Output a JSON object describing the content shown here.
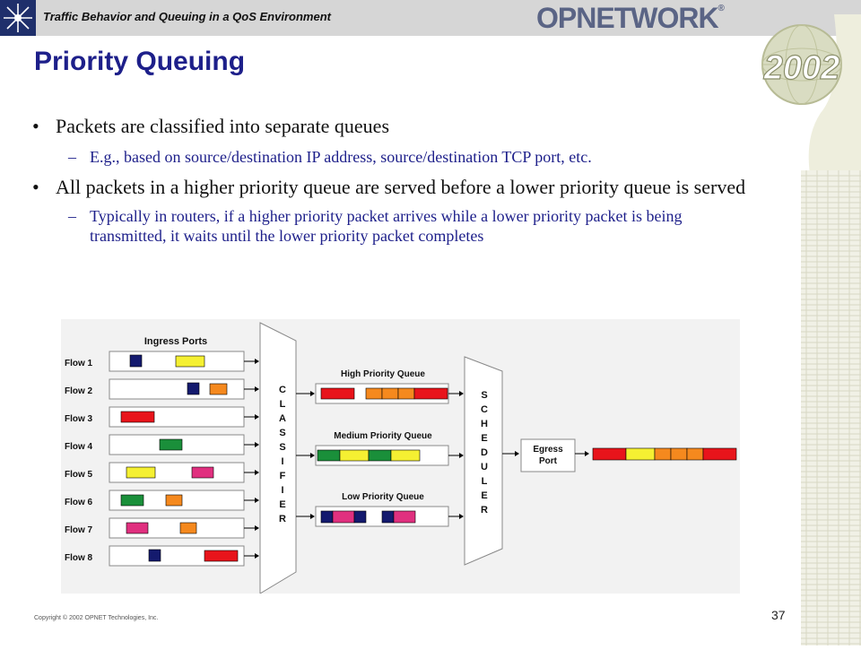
{
  "header": {
    "title": "Traffic Behavior and Queuing in a QoS Environment",
    "brand": "OPNETWORK",
    "brand_mark": "®",
    "year_badge": "2002"
  },
  "slide": {
    "title": "Priority Queuing",
    "page_number": "37",
    "copyright": "Copyright © 2002 OPNET Technologies, Inc."
  },
  "bullets": [
    {
      "text": "Packets are classified into separate queues",
      "bullet": "•",
      "sub": [
        {
          "text": "E.g., based on source/destination IP address, source/destination TCP port, etc.",
          "dash": "–"
        }
      ]
    },
    {
      "text": "All packets in a higher priority queue are served before a lower priority queue is served",
      "bullet": "•",
      "sub": [
        {
          "text": "Typically in routers, if a higher priority packet arrives while a lower priority packet is being transmitted, it waits until the lower priority packet completes",
          "dash": "–"
        }
      ]
    }
  ],
  "diagram": {
    "ingress_title": "Ingress Ports",
    "flows": [
      "Flow 1",
      "Flow 2",
      "Flow 3",
      "Flow 4",
      "Flow 5",
      "Flow 6",
      "Flow 7",
      "Flow 8"
    ],
    "classifier_letters": [
      "C",
      "L",
      "A",
      "S",
      "S",
      "I",
      "F",
      "I",
      "E",
      "R"
    ],
    "scheduler_letters": [
      "S",
      "C",
      "H",
      "E",
      "D",
      "U",
      "L",
      "E",
      "R"
    ],
    "queues": [
      "High Priority Queue",
      "Medium Priority Queue",
      "Low Priority Queue"
    ],
    "egress_line1": "Egress",
    "egress_line2": "Port",
    "colors": {
      "red": "#e8141b",
      "yellow": "#f5f032",
      "orange": "#f5891e",
      "green": "#1a8f3a",
      "magenta": "#e0307f",
      "navy": "#141a6e"
    }
  }
}
